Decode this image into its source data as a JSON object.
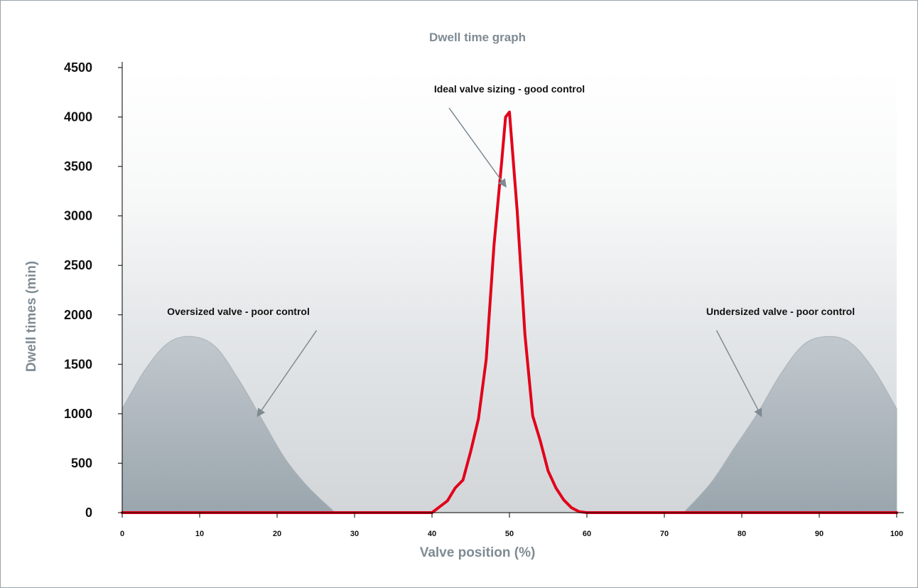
{
  "chart_data": {
    "type": "line",
    "title": "Dwell time graph",
    "xlabel": "Valve position (%)",
    "ylabel": "Dwell times (min)",
    "xlim": [
      0,
      100
    ],
    "ylim": [
      0,
      4500
    ],
    "x_ticks": [
      "0",
      "10",
      "20",
      "30",
      "40",
      "50",
      "60",
      "70",
      "80",
      "90",
      "100"
    ],
    "y_ticks": [
      "0",
      "500",
      "1000",
      "1500",
      "2000",
      "2500",
      "3000",
      "3500",
      "4000",
      "4500"
    ],
    "grid": false,
    "series": [
      {
        "color": "#e2001a",
        "x": [
          0,
          40,
          41,
          42,
          43,
          44,
          45,
          46,
          47,
          48,
          49,
          49.5,
          50,
          50.5,
          51,
          52,
          53,
          54,
          55,
          56,
          57,
          58,
          59,
          60,
          100
        ],
        "y": [
          0,
          0,
          60,
          120,
          250,
          330,
          620,
          950,
          1550,
          2700,
          3550,
          4000,
          4050,
          3550,
          3050,
          1800,
          980,
          720,
          420,
          250,
          130,
          50,
          10,
          0,
          0
        ]
      }
    ],
    "shaded_regions": [
      {
        "color": "#9aa5ad",
        "x": [
          0,
          3,
          6,
          9,
          12,
          15,
          18,
          21,
          24,
          27.5
        ],
        "y": [
          1050,
          1450,
          1720,
          1780,
          1680,
          1350,
          950,
          550,
          260,
          0
        ]
      },
      {
        "color": "#9aa5ad",
        "x": [
          72.5,
          76,
          79,
          82,
          85,
          88,
          91,
          94,
          97,
          100
        ],
        "y": [
          0,
          300,
          650,
          1000,
          1400,
          1700,
          1780,
          1720,
          1450,
          1050
        ]
      }
    ],
    "annotations": [
      {
        "text": "Ideal valve sizing - good control",
        "x": 50,
        "y": 4250,
        "arrow_to": [
          49.5,
          3300
        ]
      },
      {
        "text": "Oversized valve - poor control",
        "x": 15,
        "y": 2000,
        "arrow_to": [
          17.5,
          980
        ]
      },
      {
        "text": "Undersized valve - poor control",
        "x": 85,
        "y": 2000,
        "arrow_to": [
          82.5,
          980
        ]
      }
    ],
    "colors": {
      "axis": "#000000",
      "title": "#7f8b93",
      "line": "#e2001a",
      "shade": "#9aa5ad",
      "arrow": "#7f8b93",
      "background_top": "#ffffff",
      "background_bottom": "#d6dadd"
    }
  }
}
